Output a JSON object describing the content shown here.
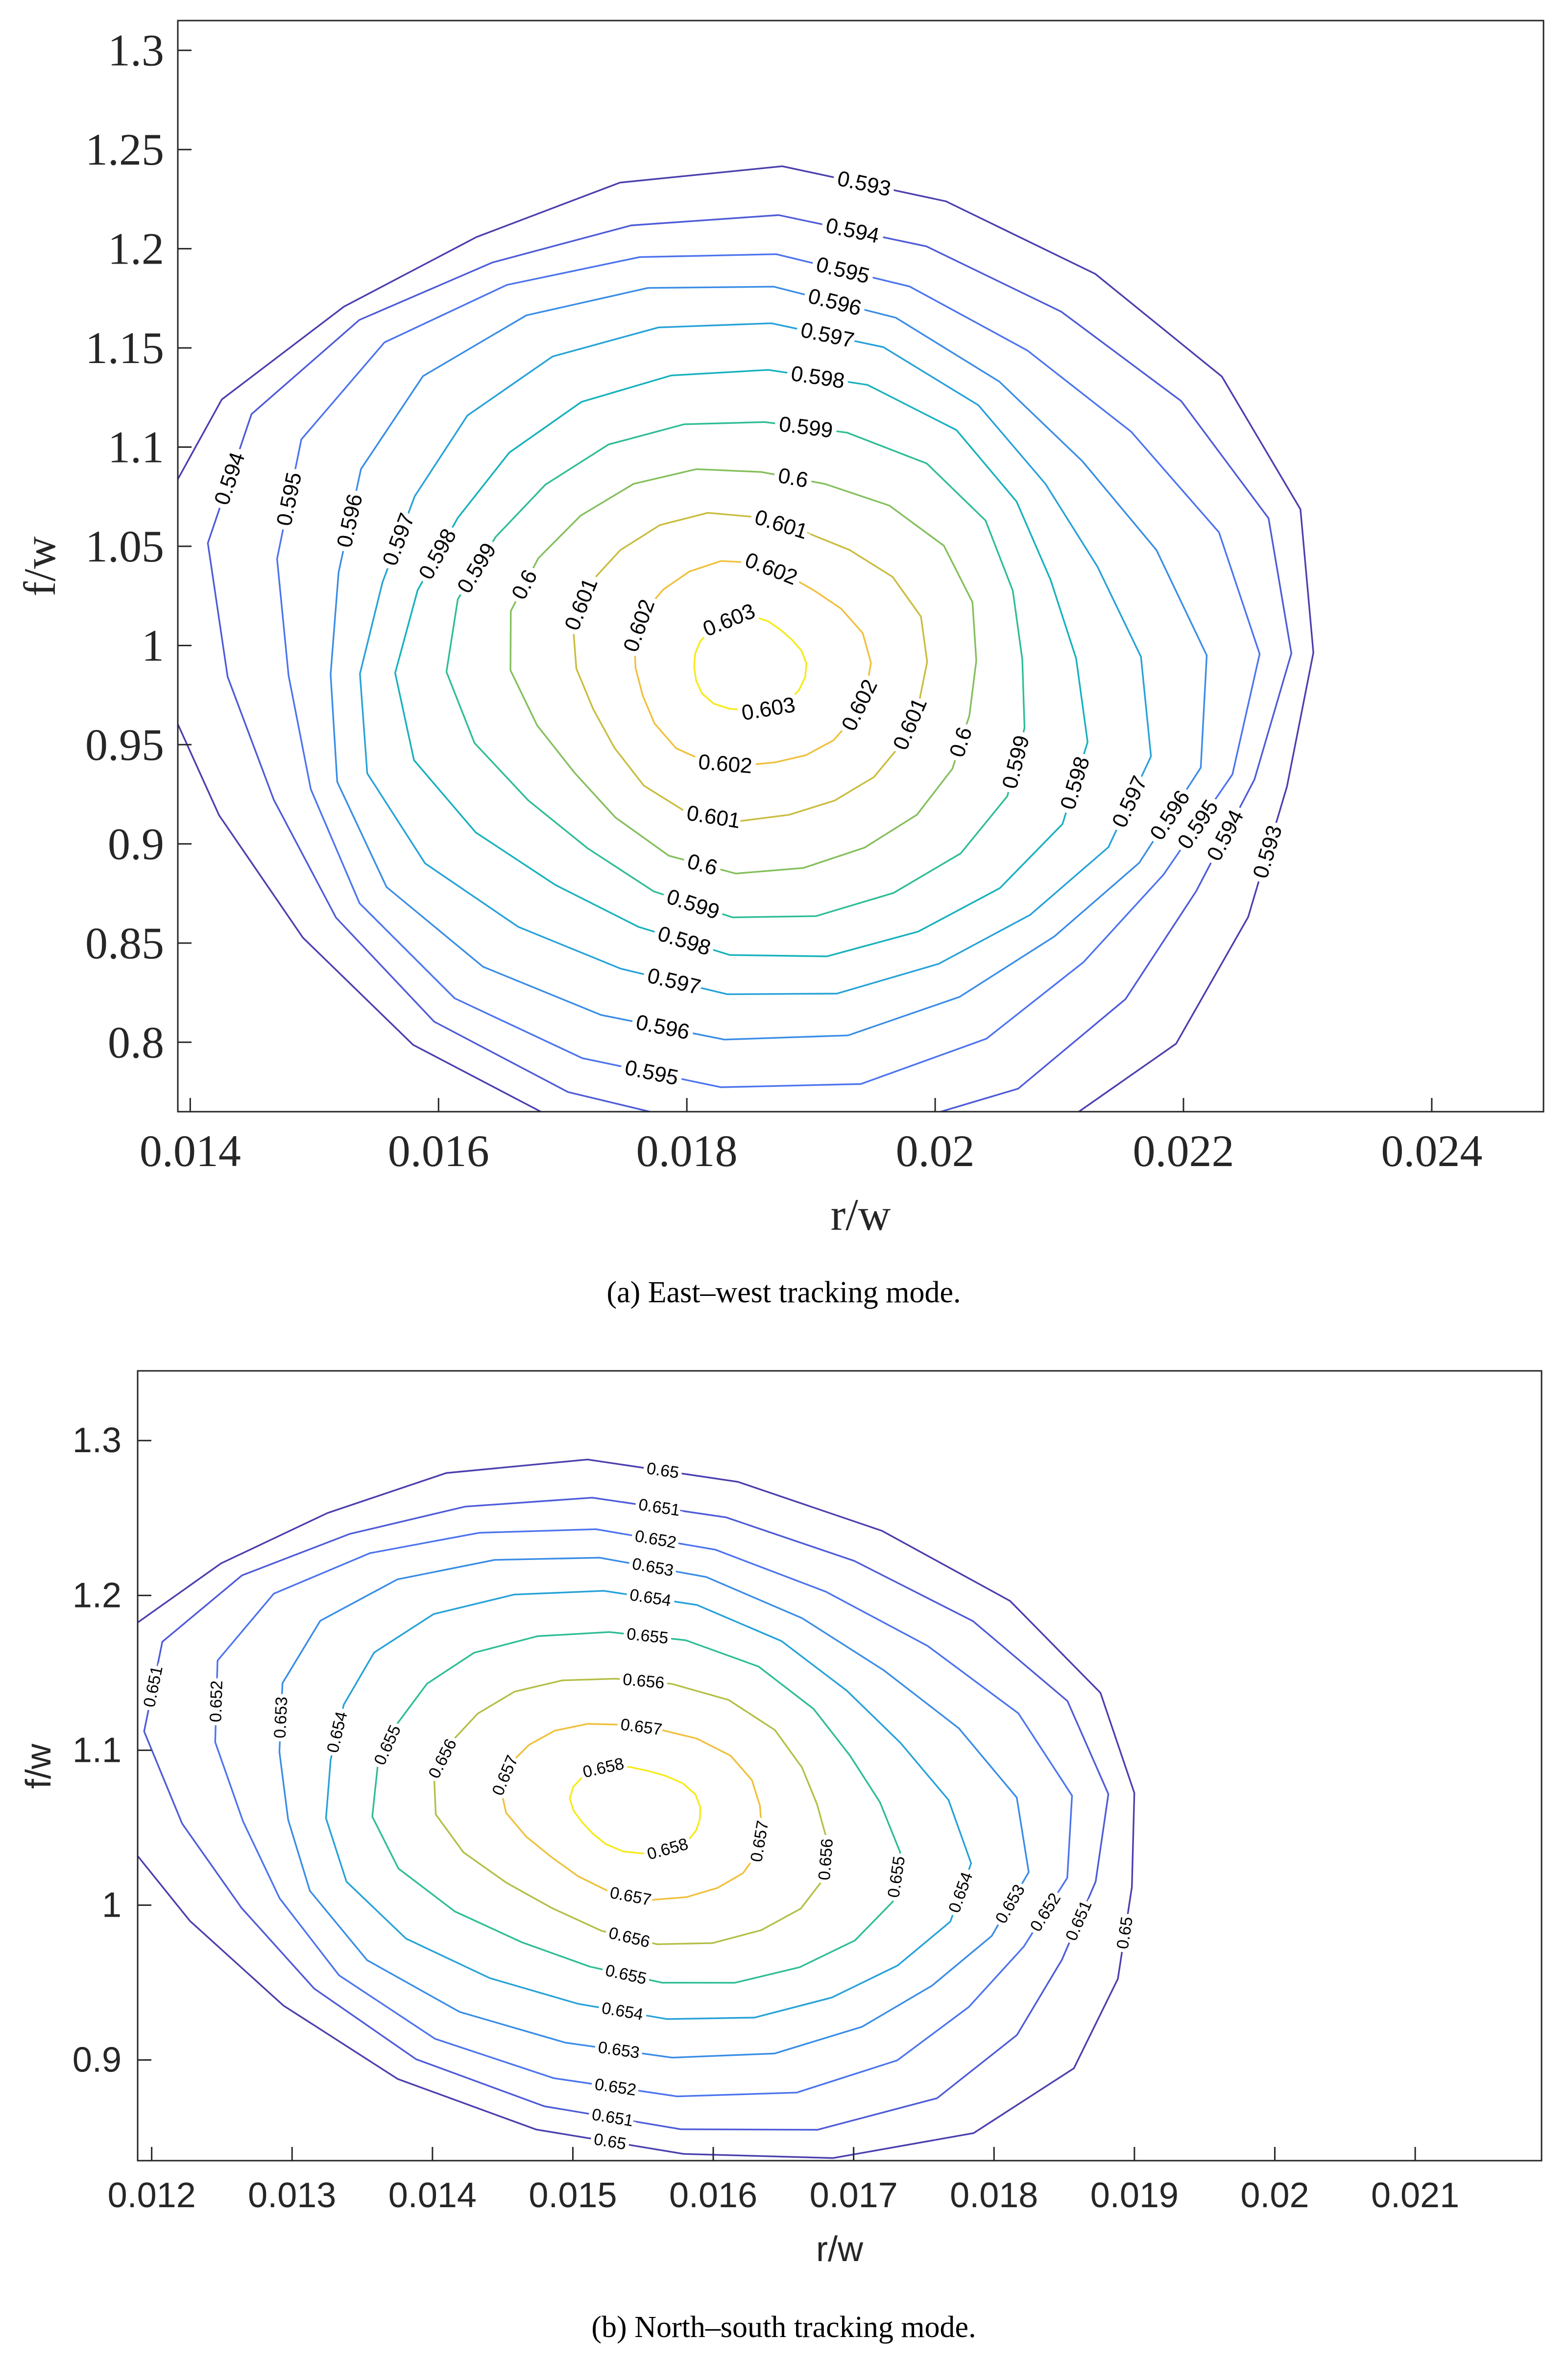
{
  "chart_data": [
    {
      "type": "contour",
      "panel": "a",
      "caption": "(a)  East–west tracking mode.",
      "xlabel": "r/w",
      "ylabel": "f/w",
      "xlim": [
        0.0139,
        0.0249
      ],
      "ylim": [
        0.765,
        1.315
      ],
      "xticks": [
        0.014,
        0.016,
        0.018,
        0.02,
        0.022,
        0.024
      ],
      "xtick_labels": [
        "0.014",
        "0.016",
        "0.018",
        "0.02",
        "0.022",
        "0.024"
      ],
      "yticks": [
        0.8,
        0.85,
        0.9,
        0.95,
        1,
        1.05,
        1.1,
        1.15,
        1.2,
        1.25,
        1.3
      ],
      "ytick_labels": [
        "0.8",
        "0.85",
        "0.9",
        "0.95",
        "1",
        "1.05",
        "1.1",
        "1.15",
        "1.2",
        "1.25",
        "1.3"
      ],
      "grid": false,
      "levels": [
        {
          "label": "0.593",
          "color": "#4b3fae",
          "a": 0.00462,
          "b": 0.254,
          "theta": 19.5
        },
        {
          "label": "0.594",
          "color": "#4e5bd8",
          "a": 0.00425,
          "b": 0.234,
          "theta": 19.5
        },
        {
          "label": "0.595",
          "color": "#4c74ee",
          "a": 0.00388,
          "b": 0.2135,
          "theta": 19.5
        },
        {
          "label": "0.596",
          "color": "#3a8de6",
          "a": 0.0035,
          "b": 0.193,
          "theta": 19.5
        },
        {
          "label": "0.597",
          "color": "#27a2d8",
          "a": 0.00312,
          "b": 0.172,
          "theta": 19.5
        },
        {
          "label": "0.598",
          "color": "#17b1bd",
          "a": 0.00272,
          "b": 0.15,
          "theta": 19.5
        },
        {
          "label": "0.599",
          "color": "#2ebd96",
          "a": 0.0023,
          "b": 0.127,
          "theta": 19.5
        },
        {
          "label": "0.6",
          "color": "#84bf5c",
          "a": 0.00186,
          "b": 0.103,
          "theta": 19.5
        },
        {
          "label": "0.601",
          "color": "#c9bd3e",
          "a": 0.0014,
          "b": 0.078,
          "theta": 19.5
        },
        {
          "label": "0.602",
          "color": "#f0c03c",
          "a": 0.00094,
          "b": 0.052,
          "theta": 19.5
        },
        {
          "label": "0.603",
          "color": "#f5ea18",
          "a": 0.00045,
          "b": 0.024,
          "theta": 19.5
        }
      ],
      "center": [
        0.0185,
        0.99
      ]
    },
    {
      "type": "contour",
      "panel": "b",
      "caption": "(b)  North–south tracking mode.",
      "xlabel": "r/w",
      "ylabel": "f/w",
      "xlim": [
        0.0119,
        0.0219
      ],
      "ylim": [
        0.835,
        1.345
      ],
      "xticks": [
        0.012,
        0.013,
        0.014,
        0.015,
        0.016,
        0.017,
        0.018,
        0.019,
        0.02,
        0.021
      ],
      "xtick_labels": [
        "0.012",
        "0.013",
        "0.014",
        "0.015",
        "0.016",
        "0.017",
        "0.018",
        "0.019",
        "0.02",
        "0.021"
      ],
      "yticks": [
        0.9,
        1,
        1.1,
        1.2,
        1.3
      ],
      "ytick_labels": [
        "0.9",
        "1",
        "1.1",
        "1.2",
        "1.3"
      ],
      "grid": false,
      "levels": [
        {
          "label": "0.65",
          "color": "#4b3fae",
          "a": 0.00355,
          "b": 0.233,
          "theta": 24
        },
        {
          "label": "0.651",
          "color": "#4e5bd8",
          "a": 0.00322,
          "b": 0.212,
          "theta": 24
        },
        {
          "label": "0.652",
          "color": "#4c74ee",
          "a": 0.00288,
          "b": 0.1905,
          "theta": 24
        },
        {
          "label": "0.653",
          "color": "#3a8de6",
          "a": 0.00253,
          "b": 0.168,
          "theta": 24
        },
        {
          "label": "0.654",
          "color": "#27a2d8",
          "a": 0.00216,
          "b": 0.144,
          "theta": 24
        },
        {
          "label": "0.655",
          "color": "#2ebd96",
          "a": 0.00176,
          "b": 0.118,
          "theta": 24
        },
        {
          "label": "0.656",
          "color": "#b4bf46",
          "a": 0.00132,
          "b": 0.0895,
          "theta": 24
        },
        {
          "label": "0.657",
          "color": "#f0c03c",
          "a": 0.00088,
          "b": 0.059,
          "theta": 24
        },
        {
          "label": "0.658",
          "color": "#f5ea18",
          "a": 0.00044,
          "b": 0.029,
          "theta": 24
        }
      ],
      "center": [
        0.01545,
        1.062
      ]
    }
  ]
}
